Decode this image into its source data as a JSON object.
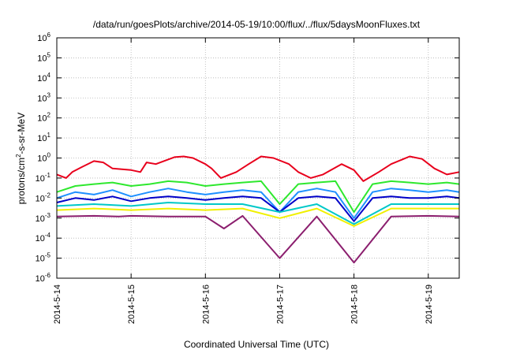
{
  "chart_data": {
    "type": "line",
    "title": "/data/run/goesPlots/archive/2014-05-19/10:00/flux/../flux/5daysMoonFluxes.txt",
    "xlabel": "Coordinated Universal Time (UTC)",
    "ylabel": {
      "prefix": "protons/cm",
      "sup": "2",
      "suffix": "-s-sr-MeV"
    },
    "y_scale": "log",
    "ylim": [
      1e-06,
      1000000.0
    ],
    "y_ticks": [
      {
        "value": 1e-06,
        "base": "10",
        "exp": "-6"
      },
      {
        "value": 1e-05,
        "base": "10",
        "exp": "-5"
      },
      {
        "value": 0.0001,
        "base": "10",
        "exp": "-4"
      },
      {
        "value": 0.001,
        "base": "10",
        "exp": "-3"
      },
      {
        "value": 0.01,
        "base": "10",
        "exp": "-2"
      },
      {
        "value": 0.1,
        "base": "10",
        "exp": "-1"
      },
      {
        "value": 1,
        "base": "10",
        "exp": "0"
      },
      {
        "value": 10.0,
        "base": "10",
        "exp": "1"
      },
      {
        "value": 100.0,
        "base": "10",
        "exp": "2"
      },
      {
        "value": 1000.0,
        "base": "10",
        "exp": "3"
      },
      {
        "value": 10000.0,
        "base": "10",
        "exp": "4"
      },
      {
        "value": 100000.0,
        "base": "10",
        "exp": "5"
      },
      {
        "value": 1000000.0,
        "base": "10",
        "exp": "6"
      }
    ],
    "xlim": [
      "2014-05-14T00:00",
      "2014-05-19T10:00"
    ],
    "x_ticks": [
      "2014-5-14",
      "2014-5-15",
      "2014-5-16",
      "2014-5-17",
      "2014-5-18",
      "2014-5-19"
    ],
    "x_tick_dates": [
      "2014-05-14",
      "2014-05-15",
      "2014-05-16",
      "2014-05-17",
      "2014-05-18",
      "2014-05-19"
    ],
    "grid": true,
    "legend": "none",
    "series": [
      {
        "color": "#e8001c",
        "x": [
          "2014-05-14T00:00",
          "2014-05-14T03:00",
          "2014-05-14T05:00",
          "2014-05-14T08:00",
          "2014-05-14T12:00",
          "2014-05-14T15:00",
          "2014-05-14T18:00",
          "2014-05-15T00:00",
          "2014-05-15T03:00",
          "2014-05-15T05:00",
          "2014-05-15T08:00",
          "2014-05-15T14:00",
          "2014-05-15T17:00",
          "2014-05-15T20:00",
          "2014-05-16T00:00",
          "2014-05-16T02:00",
          "2014-05-16T05:00",
          "2014-05-16T10:00",
          "2014-05-16T14:00",
          "2014-05-16T18:00",
          "2014-05-16T22:00",
          "2014-05-17T03:00",
          "2014-05-17T06:00",
          "2014-05-17T10:00",
          "2014-05-17T14:00",
          "2014-05-17T20:00",
          "2014-05-18T00:00",
          "2014-05-18T03:00",
          "2014-05-18T08:00",
          "2014-05-18T12:00",
          "2014-05-18T18:00",
          "2014-05-18T22:00",
          "2014-05-19T02:00",
          "2014-05-19T06:00",
          "2014-05-19T10:00"
        ],
        "y": [
          0.15,
          0.1,
          0.2,
          0.35,
          0.7,
          0.6,
          0.3,
          0.25,
          0.2,
          0.6,
          0.5,
          1.1,
          1.2,
          1.0,
          0.5,
          0.3,
          0.1,
          0.2,
          0.5,
          1.2,
          1.0,
          0.5,
          0.2,
          0.1,
          0.15,
          0.5,
          0.25,
          0.07,
          0.2,
          0.5,
          1.2,
          0.9,
          0.3,
          0.15,
          0.2
        ]
      },
      {
        "color": "#2ee82e",
        "x": [
          "2014-05-14T00:00",
          "2014-05-14T06:00",
          "2014-05-14T12:00",
          "2014-05-14T18:00",
          "2014-05-15T00:00",
          "2014-05-15T06:00",
          "2014-05-15T12:00",
          "2014-05-15T18:00",
          "2014-05-16T00:00",
          "2014-05-16T06:00",
          "2014-05-16T12:00",
          "2014-05-16T18:00",
          "2014-05-17T00:00",
          "2014-05-17T06:00",
          "2014-05-17T12:00",
          "2014-05-17T18:00",
          "2014-05-18T00:00",
          "2014-05-18T06:00",
          "2014-05-18T12:00",
          "2014-05-18T18:00",
          "2014-05-19T00:00",
          "2014-05-19T06:00",
          "2014-05-19T10:00"
        ],
        "y": [
          0.02,
          0.04,
          0.05,
          0.06,
          0.04,
          0.05,
          0.07,
          0.06,
          0.04,
          0.05,
          0.06,
          0.07,
          0.005,
          0.05,
          0.06,
          0.07,
          0.002,
          0.05,
          0.07,
          0.06,
          0.05,
          0.06,
          0.05
        ]
      },
      {
        "color": "#1e90ff",
        "x": [
          "2014-05-14T00:00",
          "2014-05-14T06:00",
          "2014-05-14T12:00",
          "2014-05-14T18:00",
          "2014-05-15T00:00",
          "2014-05-15T06:00",
          "2014-05-15T12:00",
          "2014-05-15T18:00",
          "2014-05-16T00:00",
          "2014-05-16T06:00",
          "2014-05-16T12:00",
          "2014-05-16T18:00",
          "2014-05-17T00:00",
          "2014-05-17T06:00",
          "2014-05-17T12:00",
          "2014-05-17T18:00",
          "2014-05-18T00:00",
          "2014-05-18T06:00",
          "2014-05-18T12:00",
          "2014-05-18T18:00",
          "2014-05-19T00:00",
          "2014-05-19T06:00",
          "2014-05-19T10:00"
        ],
        "y": [
          0.01,
          0.02,
          0.015,
          0.025,
          0.012,
          0.02,
          0.03,
          0.02,
          0.015,
          0.02,
          0.025,
          0.02,
          0.002,
          0.02,
          0.03,
          0.02,
          0.001,
          0.02,
          0.03,
          0.025,
          0.02,
          0.025,
          0.02
        ]
      },
      {
        "color": "#0000c8",
        "x": [
          "2014-05-14T00:00",
          "2014-05-14T06:00",
          "2014-05-14T12:00",
          "2014-05-14T18:00",
          "2014-05-15T00:00",
          "2014-05-15T06:00",
          "2014-05-15T12:00",
          "2014-05-15T18:00",
          "2014-05-16T00:00",
          "2014-05-16T06:00",
          "2014-05-16T12:00",
          "2014-05-16T18:00",
          "2014-05-17T00:00",
          "2014-05-17T06:00",
          "2014-05-17T12:00",
          "2014-05-17T18:00",
          "2014-05-18T00:00",
          "2014-05-18T06:00",
          "2014-05-18T12:00",
          "2014-05-18T18:00",
          "2014-05-19T00:00",
          "2014-05-19T06:00",
          "2014-05-19T10:00"
        ],
        "y": [
          0.006,
          0.01,
          0.008,
          0.012,
          0.007,
          0.01,
          0.012,
          0.01,
          0.008,
          0.01,
          0.012,
          0.01,
          0.002,
          0.01,
          0.012,
          0.01,
          0.0007,
          0.01,
          0.012,
          0.01,
          0.01,
          0.012,
          0.01
        ]
      },
      {
        "color": "#00c8c8",
        "x": [
          "2014-05-14T00:00",
          "2014-05-14T12:00",
          "2014-05-15T00:00",
          "2014-05-15T12:00",
          "2014-05-16T00:00",
          "2014-05-16T12:00",
          "2014-05-17T00:00",
          "2014-05-17T12:00",
          "2014-05-18T00:00",
          "2014-05-18T12:00",
          "2014-05-19T00:00",
          "2014-05-19T10:00"
        ],
        "y": [
          0.004,
          0.005,
          0.004,
          0.006,
          0.005,
          0.005,
          0.002,
          0.005,
          0.0005,
          0.005,
          0.005,
          0.005
        ]
      },
      {
        "color": "#f0f000",
        "x": [
          "2014-05-14T00:00",
          "2014-05-14T12:00",
          "2014-05-15T00:00",
          "2014-05-15T12:00",
          "2014-05-16T00:00",
          "2014-05-16T12:00",
          "2014-05-17T00:00",
          "2014-05-17T12:00",
          "2014-05-18T00:00",
          "2014-05-18T12:00",
          "2014-05-19T00:00",
          "2014-05-19T10:00"
        ],
        "y": [
          0.0025,
          0.003,
          0.0025,
          0.003,
          0.0025,
          0.003,
          0.001,
          0.003,
          0.0004,
          0.003,
          0.003,
          0.003
        ]
      },
      {
        "color": "#8b1e6e",
        "x": [
          "2014-05-14T00:00",
          "2014-05-14T12:00",
          "2014-05-14T20:00",
          "2014-05-15T00:00",
          "2014-05-15T12:00",
          "2014-05-16T00:00",
          "2014-05-16T06:00",
          "2014-05-16T12:00",
          "2014-05-17T00:00",
          "2014-05-17T12:00",
          "2014-05-18T00:00",
          "2014-05-18T12:00",
          "2014-05-19T00:00",
          "2014-05-19T10:00"
        ],
        "y": [
          0.0012,
          0.0013,
          0.0012,
          0.0013,
          0.0012,
          0.0012,
          0.0003,
          0.0013,
          1e-05,
          0.0012,
          6e-06,
          0.0012,
          0.0013,
          0.0012
        ]
      }
    ]
  }
}
